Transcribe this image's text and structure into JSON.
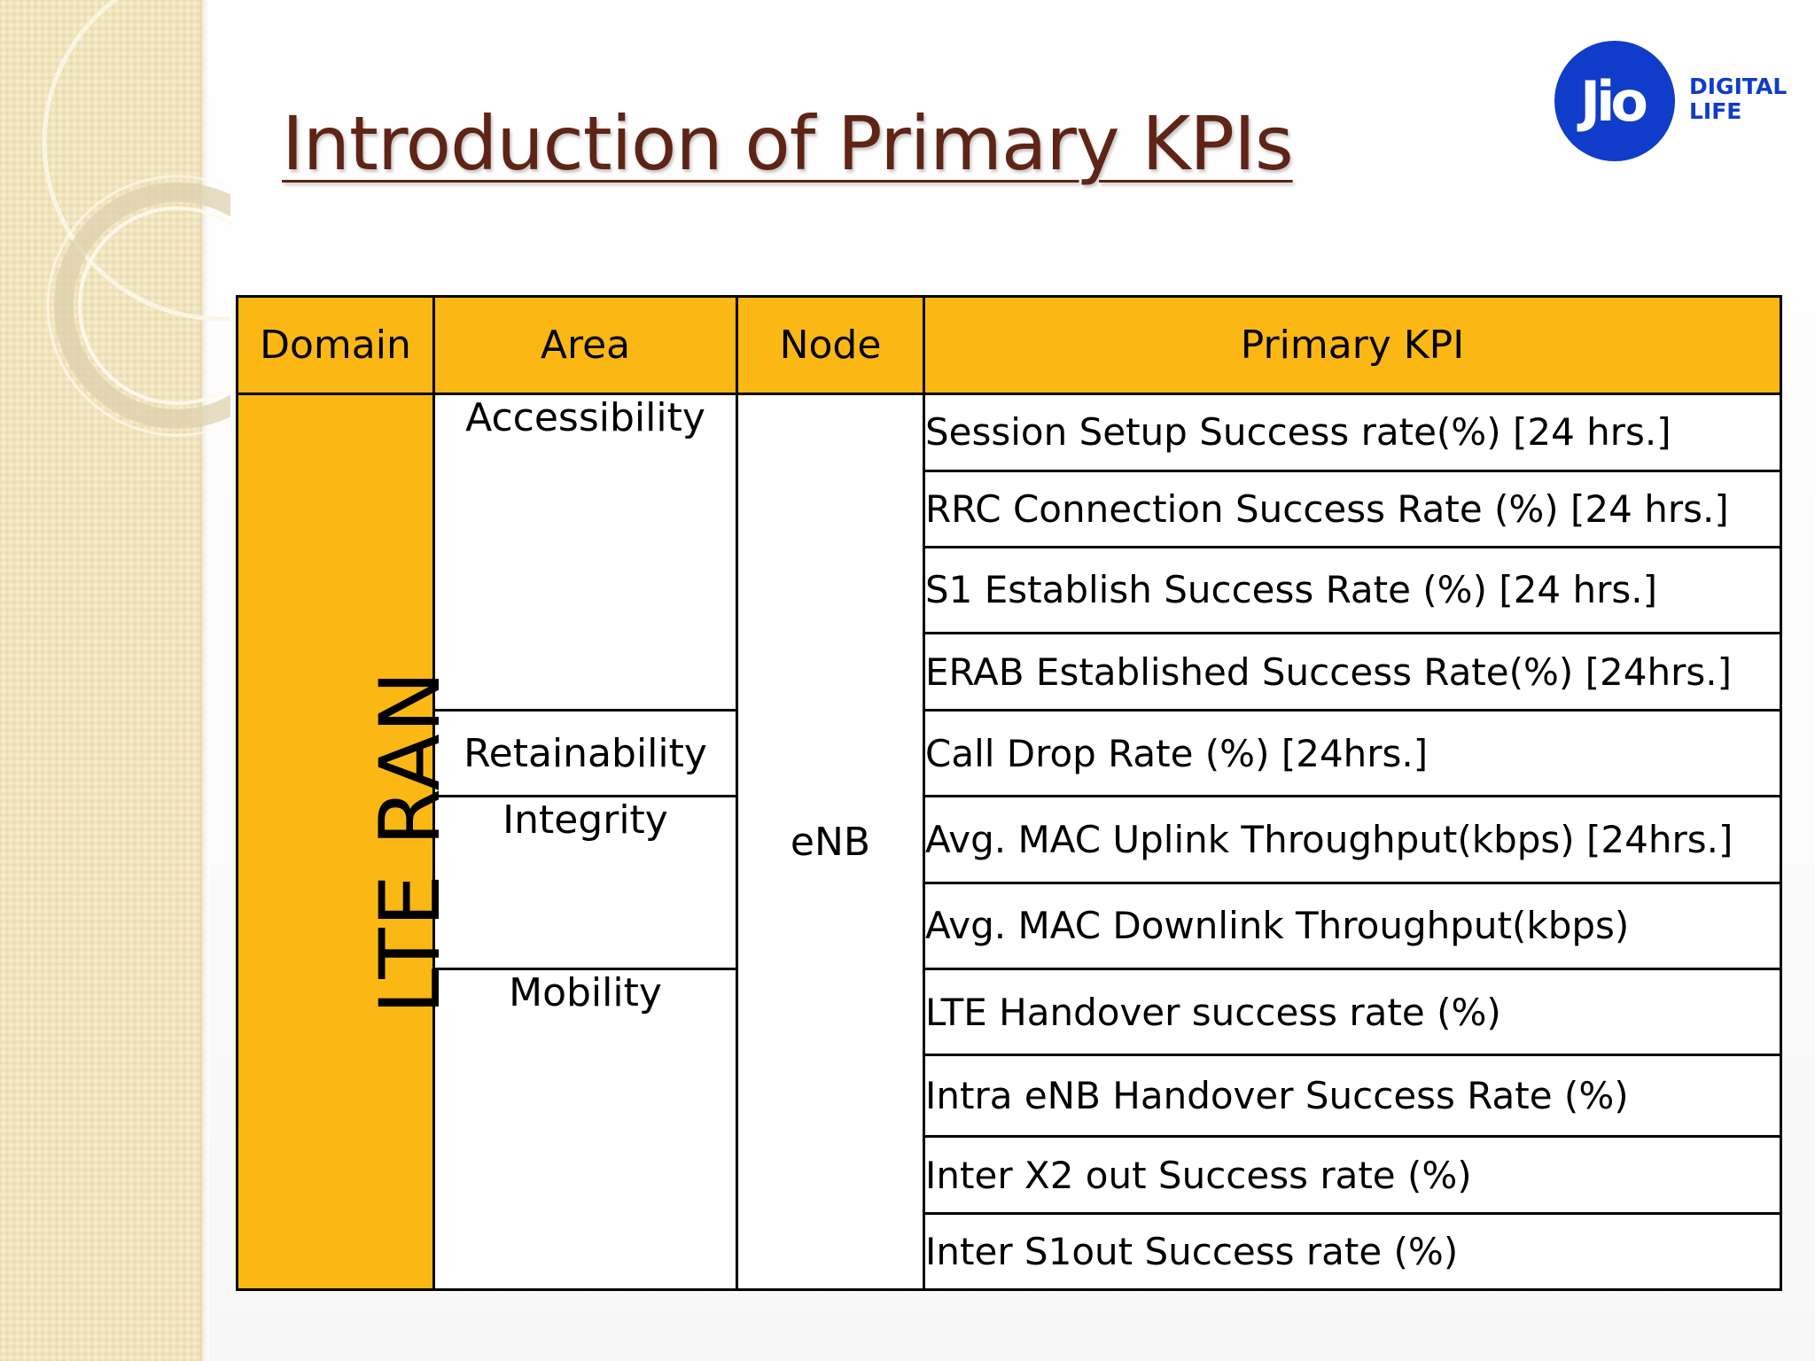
{
  "slide": {
    "title": "Introduction of Primary KPIs"
  },
  "logo": {
    "brand": "Jio",
    "tagline_line1": "DIGITAL",
    "tagline_line2": "LIFE",
    "color": "#0f3cc9"
  },
  "colors": {
    "header_fill": "#fbb714",
    "title_color": "#5e2415",
    "border": "#000000"
  },
  "table": {
    "headers": {
      "domain": "Domain",
      "area": "Area",
      "node": "Node",
      "kpi": "Primary KPI"
    },
    "domain": "LTE RAN",
    "node": "eNB",
    "areas": {
      "accessibility": "Accessibility",
      "retainability": "Retainability",
      "integrity": "Integrity",
      "mobility": "Mobility"
    },
    "kpis": [
      "Session Setup Success rate(%) [24 hrs.]",
      "RRC Connection Success Rate (%) [24 hrs.]",
      "S1 Establish Success Rate (%) [24 hrs.]",
      "ERAB Established Success Rate(%) [24hrs.]",
      "Call Drop Rate (%) [24hrs.]",
      "Avg. MAC Uplink Throughput(kbps) [24hrs.]",
      "Avg. MAC Downlink Throughput(kbps)",
      "LTE Handover success rate (%)",
      "Intra eNB Handover Success Rate (%)",
      "Inter X2 out Success rate (%)",
      "Inter S1out Success rate (%)"
    ]
  }
}
